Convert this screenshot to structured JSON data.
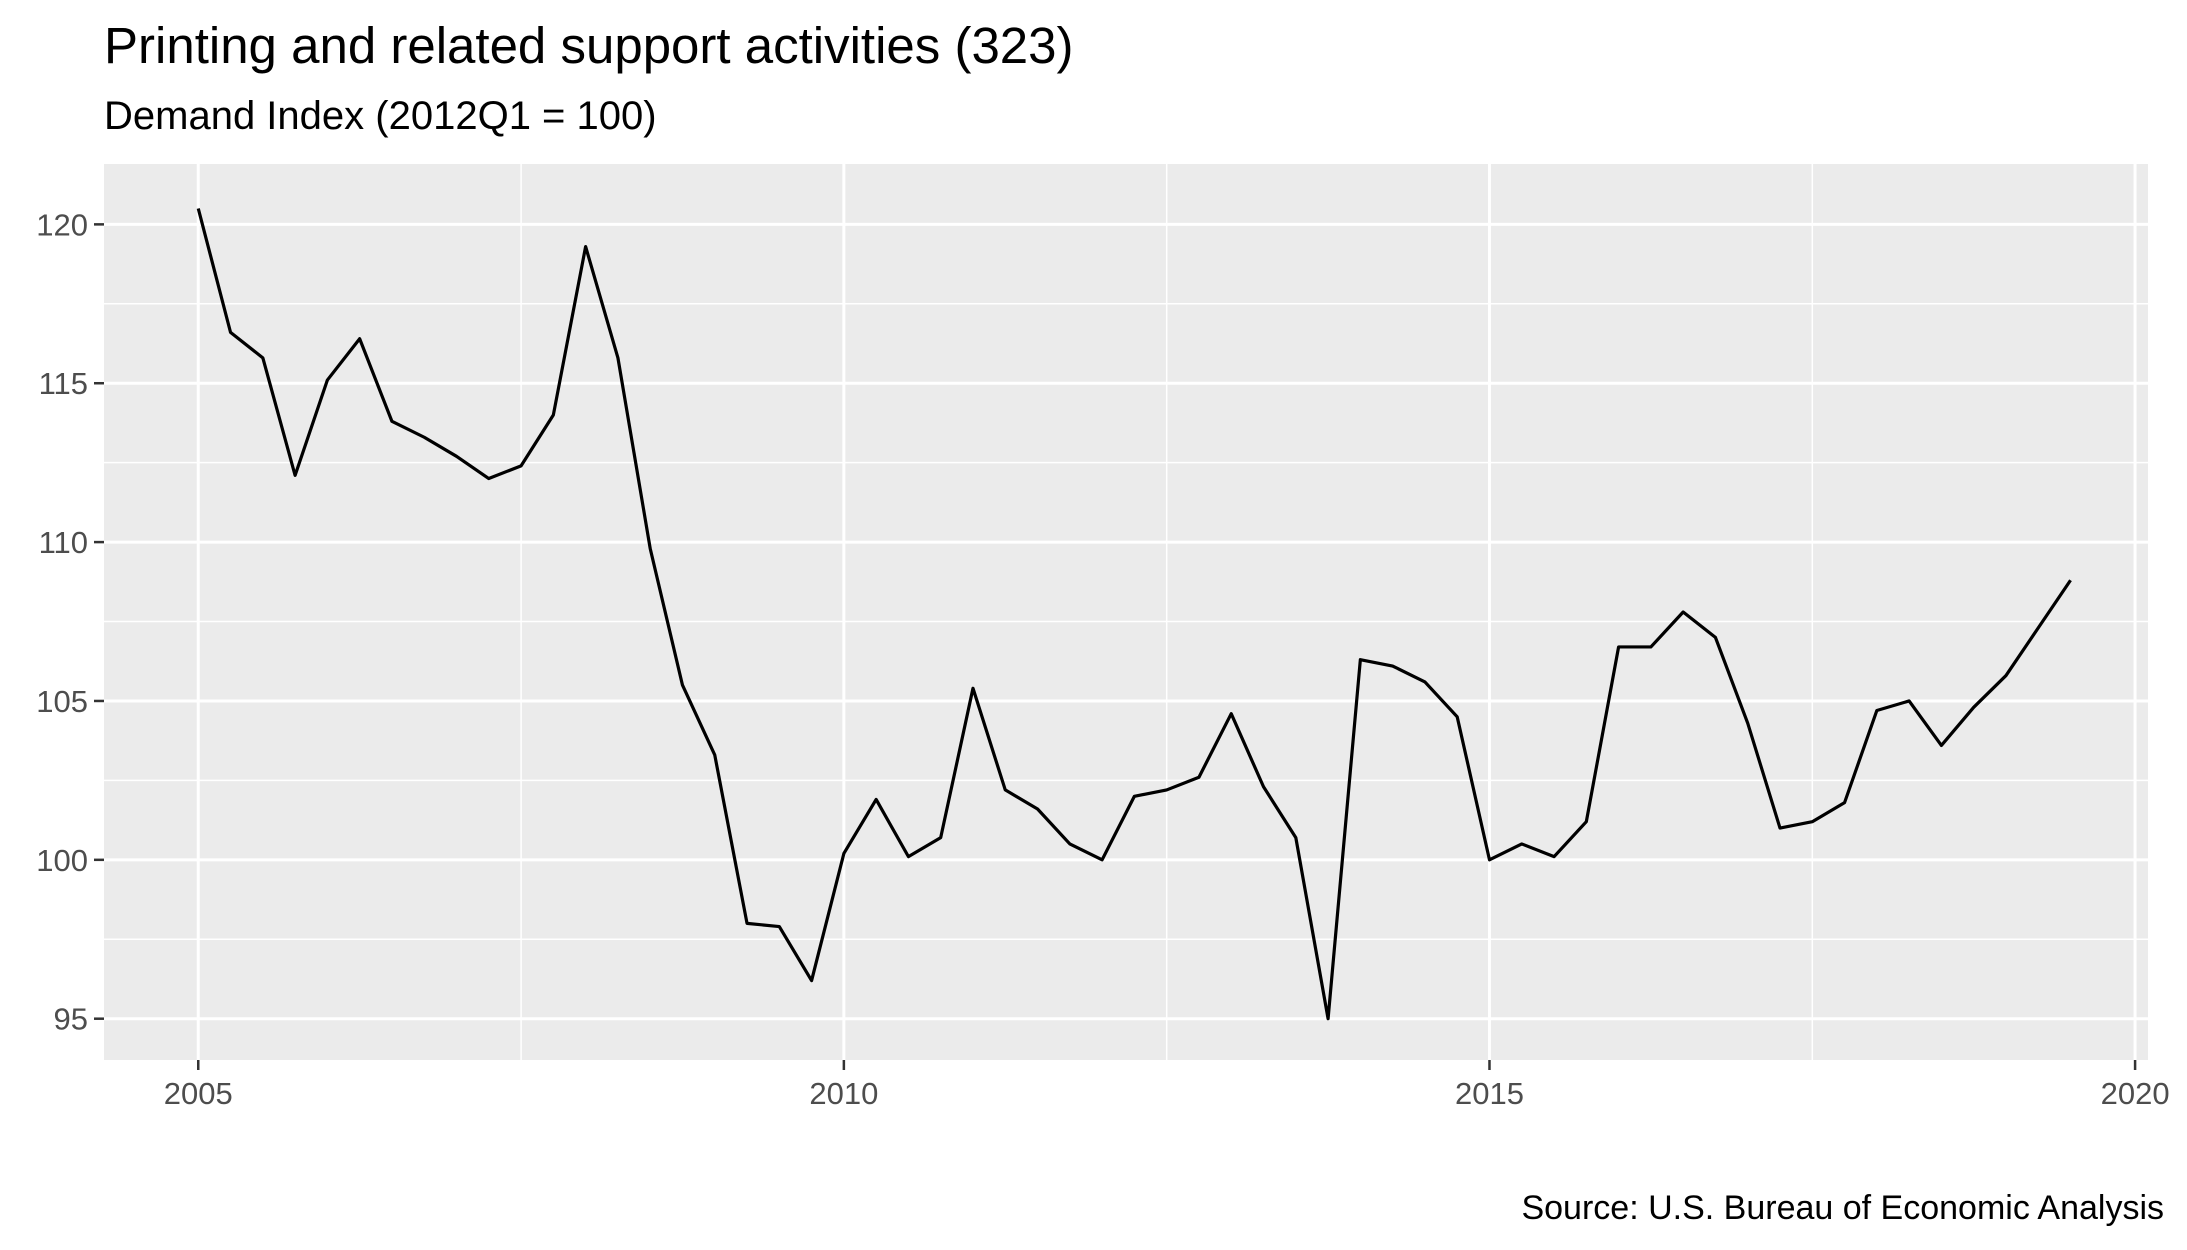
{
  "chart_data": {
    "type": "line",
    "title": "Printing and related support activities (323)",
    "subtitle": "Demand Index (2012Q1 = 100)",
    "caption": "Source: U.S. Bureau of Economic Analysis",
    "xlabel": "",
    "ylabel": "",
    "xlim": [
      2004.27,
      2020.1
    ],
    "ylim": [
      93.7,
      121.9
    ],
    "x_ticks": [
      2005,
      2010,
      2015,
      2020
    ],
    "x_tick_labels": [
      "2005",
      "2010",
      "2015",
      "2020"
    ],
    "y_ticks": [
      95,
      100,
      105,
      110,
      115,
      120
    ],
    "y_tick_labels": [
      "95",
      "100",
      "105",
      "110",
      "115",
      "120"
    ],
    "grid": true,
    "legend": "none",
    "colors": {
      "panel": "#ebebeb",
      "grid": "#ffffff",
      "line": "#000000",
      "tick_label": "#4d4d4d"
    },
    "series": [
      {
        "x": [
          2005.0,
          2005.25,
          2005.5,
          2005.75,
          2006.0,
          2006.25,
          2006.5,
          2006.75,
          2007.0,
          2007.25,
          2007.5,
          2007.75,
          2008.0,
          2008.25,
          2008.5,
          2008.75,
          2009.0,
          2009.25,
          2009.5,
          2009.75,
          2010.0,
          2010.25,
          2010.5,
          2010.75,
          2011.0,
          2011.25,
          2011.5,
          2011.75,
          2012.0,
          2012.25,
          2012.5,
          2012.75,
          2013.0,
          2013.25,
          2013.5,
          2013.75,
          2014.0,
          2014.25,
          2014.5,
          2014.75,
          2015.0,
          2015.25,
          2015.5,
          2015.75,
          2016.0,
          2016.25,
          2016.5,
          2016.75,
          2017.0,
          2017.25,
          2017.5,
          2017.75,
          2018.0,
          2018.25,
          2018.5,
          2018.75,
          2019.0,
          2019.25,
          2019.5
        ],
        "values": [
          120.5,
          116.6,
          115.8,
          112.1,
          115.1,
          116.4,
          113.8,
          113.3,
          112.7,
          112.0,
          112.4,
          114.0,
          119.3,
          115.8,
          109.8,
          105.5,
          103.3,
          98.0,
          97.9,
          96.2,
          100.2,
          101.9,
          100.1,
          100.7,
          105.4,
          102.2,
          101.6,
          100.5,
          100.0,
          102.0,
          102.2,
          102.6,
          104.6,
          102.3,
          100.7,
          95.0,
          106.3,
          106.1,
          105.6,
          104.5,
          100.0,
          100.5,
          100.1,
          101.2,
          106.7,
          106.7,
          107.8,
          107.0,
          104.3,
          101.0,
          101.2,
          101.8,
          104.7,
          105.0,
          103.6,
          104.8,
          105.8,
          107.3,
          108.8
        ]
      }
    ]
  }
}
